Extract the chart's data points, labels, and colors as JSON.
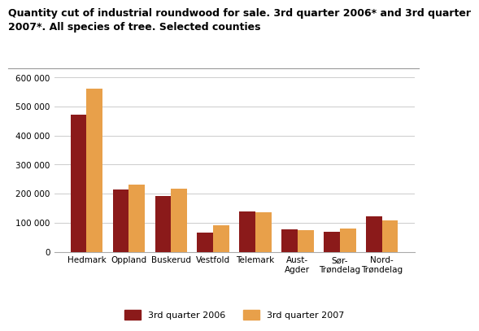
{
  "title_line1": "Quantity cut of industrial roundwood for sale. 3rd quarter 2006* and 3rd quarter",
  "title_line2": "2007*. All species of tree. Selected counties",
  "categories": [
    "Hedmark",
    "Oppland",
    "Buskerud",
    "Vestfold",
    "Telemark",
    "Aust-\nAgder",
    "Sør-\nTrøndelag",
    "Nord-\nTrøndelag"
  ],
  "values_2006": [
    473000,
    215000,
    193000,
    65000,
    138000,
    78000,
    70000,
    123000
  ],
  "values_2007": [
    560000,
    232000,
    217000,
    92000,
    135000,
    73000,
    80000,
    109000
  ],
  "color_2006": "#8B1A1A",
  "color_2007": "#E8A04A",
  "legend_2006": "3rd quarter 2006",
  "legend_2007": "3rd quarter 2007",
  "ylim": [
    0,
    620000
  ],
  "yticks": [
    0,
    100000,
    200000,
    300000,
    400000,
    500000,
    600000
  ],
  "ytick_labels": [
    "0",
    "100 000",
    "200 000",
    "300 000",
    "400 000",
    "500 000",
    "600 000"
  ],
  "background_color": "#ffffff",
  "grid_color": "#cccccc",
  "title_fontsize": 9.0,
  "tick_fontsize": 7.5
}
